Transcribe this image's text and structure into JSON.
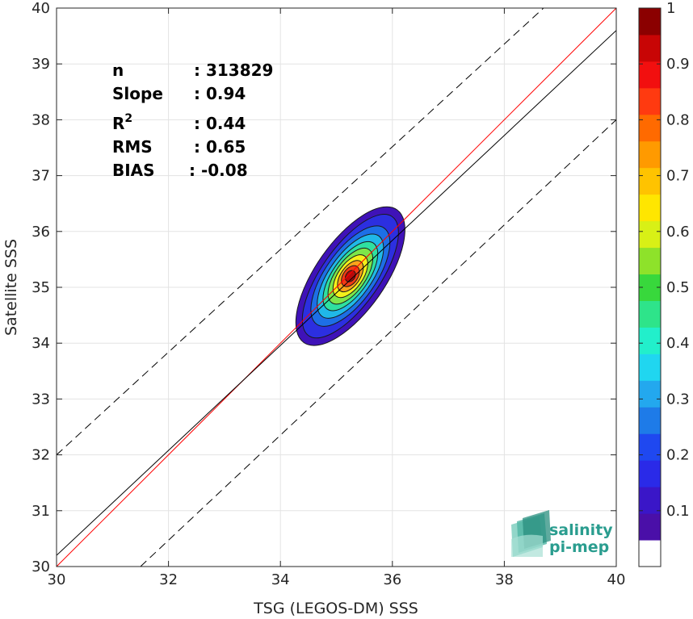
{
  "chart_data": {
    "type": "contour",
    "xlabel": "TSG (LEGOS-DM) SSS",
    "ylabel": "Satellite SSS",
    "xlim": [
      30,
      40
    ],
    "ylim": [
      30,
      40
    ],
    "xticks": [
      "30",
      "32",
      "34",
      "36",
      "38",
      "40"
    ],
    "yticks": [
      "30",
      "31",
      "32",
      "33",
      "34",
      "35",
      "36",
      "37",
      "38",
      "39",
      "40"
    ],
    "grid": true,
    "density_peak": {
      "x": 35.25,
      "y": 35.2
    },
    "density_orientation_deg": 55,
    "density_levels": [
      {
        "level": 0.05,
        "color": "#3f12b8",
        "rx": 1.45,
        "ry": 0.62
      },
      {
        "level": 0.15,
        "color": "#2c2fe0",
        "rx": 1.3,
        "ry": 0.52
      },
      {
        "level": 0.25,
        "color": "#1d6fe6",
        "rx": 1.05,
        "ry": 0.45
      },
      {
        "level": 0.35,
        "color": "#20b8e8",
        "rx": 0.88,
        "ry": 0.38
      },
      {
        "level": 0.45,
        "color": "#2fe0a0",
        "rx": 0.72,
        "ry": 0.32
      },
      {
        "level": 0.55,
        "color": "#7de64a",
        "rx": 0.58,
        "ry": 0.27
      },
      {
        "level": 0.65,
        "color": "#f4f01a",
        "rx": 0.44,
        "ry": 0.22
      },
      {
        "level": 0.75,
        "color": "#fba31a",
        "rx": 0.32,
        "ry": 0.17
      },
      {
        "level": 0.85,
        "color": "#f23a14",
        "rx": 0.21,
        "ry": 0.13
      },
      {
        "level": 0.95,
        "color": "#b80a0a",
        "rx": 0.11,
        "ry": 0.08
      }
    ],
    "lines": [
      {
        "name": "1:1 line",
        "style": "solid",
        "color": "#ff0000",
        "x": [
          30,
          40
        ],
        "y": [
          30,
          40
        ]
      },
      {
        "name": "fit",
        "style": "solid",
        "color": "#000000",
        "x": [
          30,
          40
        ],
        "y": [
          30.2,
          39.6
        ]
      },
      {
        "name": "upper bound",
        "style": "dashed",
        "color": "#000000",
        "x": [
          30,
          38.7
        ],
        "y": [
          32.0,
          40
        ]
      },
      {
        "name": "lower bound",
        "style": "dashed",
        "color": "#000000",
        "x": [
          31.5,
          40
        ],
        "y": [
          30,
          38.0
        ]
      }
    ],
    "stats": [
      {
        "label": "n",
        "value": ": 313829"
      },
      {
        "label": "Slope",
        "value": ": 0.94"
      },
      {
        "label": "R",
        "sup": "2",
        "value": ": 0.44"
      },
      {
        "label": "RMS",
        "value": ": 0.65"
      },
      {
        "label": "BIAS",
        "value": ": -0.08"
      }
    ],
    "colorbar": {
      "range": [
        0,
        1
      ],
      "ticks": [
        "0.1",
        "0.2",
        "0.3",
        "0.4",
        "0.5",
        "0.6",
        "0.7",
        "0.8",
        "0.9",
        "1"
      ],
      "tick_values": [
        0.1,
        0.2,
        0.3,
        0.4,
        0.5,
        0.6,
        0.7,
        0.8,
        0.9,
        1.0
      ],
      "colors": [
        "#ffffff",
        "#4a0fa8",
        "#3a16c8",
        "#2a2ae8",
        "#1f48f0",
        "#1e7be8",
        "#23a8ee",
        "#20d6f0",
        "#22efcb",
        "#2ee48a",
        "#38d83c",
        "#8ee22a",
        "#d8f016",
        "#ffe600",
        "#ffc300",
        "#ff9a00",
        "#ff6a00",
        "#ff3a10",
        "#f20f0f",
        "#c80505",
        "#8b0000"
      ]
    }
  },
  "logo": {
    "line1": "salinity",
    "line2": "pi-mep"
  }
}
